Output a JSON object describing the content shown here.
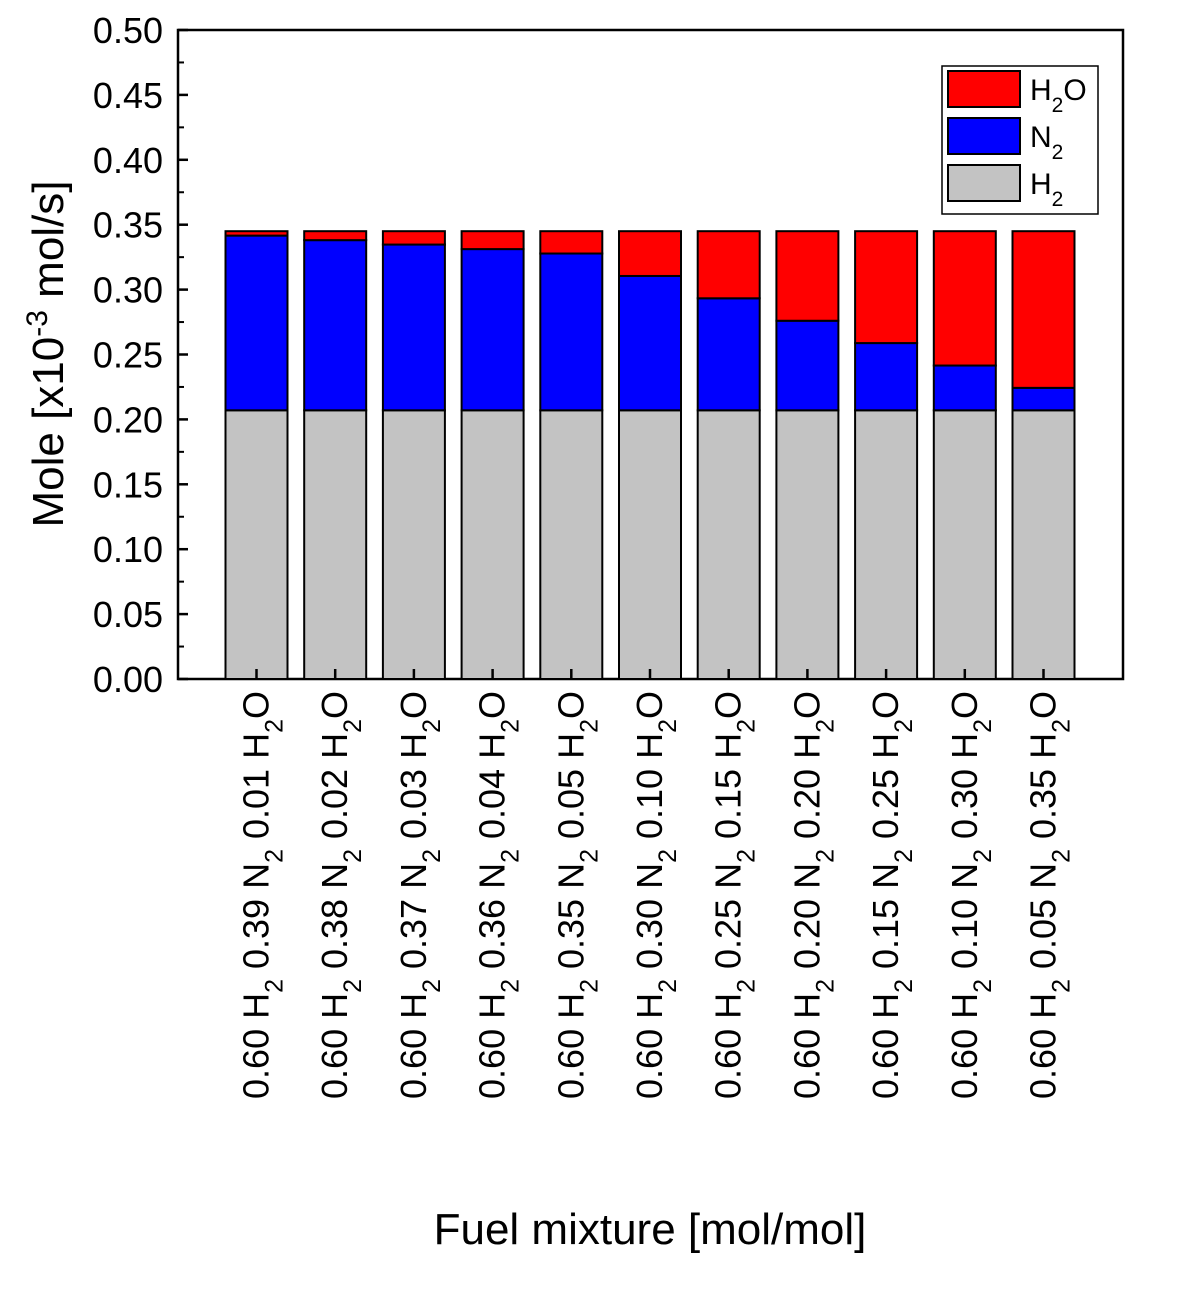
{
  "chart_data": {
    "type": "bar",
    "stacked": true,
    "xlabel": "Fuel mixture [mol/mol]",
    "ylabel": "Mole [x10^-3 mol/s]",
    "ylim": [
      0,
      0.5
    ],
    "yticks": [
      0.0,
      0.05,
      0.1,
      0.15,
      0.2,
      0.25,
      0.3,
      0.35,
      0.4,
      0.45,
      0.5
    ],
    "grid": false,
    "legend_position": "top-right",
    "categories": [
      "0.60 H2 0.39 N2 0.01 H2O",
      "0.60 H2 0.38 N2 0.02 H2O",
      "0.60 H2 0.37 N2 0.03 H2O",
      "0.60 H2 0.36 N2 0.04 H2O",
      "0.60 H2 0.35 N2 0.05 H2O",
      "0.60 H2 0.30 N2 0.10 H2O",
      "0.60 H2 0.25 N2 0.15 H2O",
      "0.60 H2 0.20 N2 0.20 H2O",
      "0.60 H2 0.15 N2 0.25 H2O",
      "0.60 H2 0.10 N2 0.30 H2O",
      "0.60 H2 0.05 N2 0.35 H2O"
    ],
    "series": [
      {
        "name": "H2",
        "color": "#c3c3c3",
        "values": [
          0.207,
          0.207,
          0.207,
          0.207,
          0.207,
          0.207,
          0.207,
          0.207,
          0.207,
          0.207,
          0.207
        ]
      },
      {
        "name": "N2",
        "color": "#0000ff",
        "values": [
          0.1346,
          0.1311,
          0.1277,
          0.1242,
          0.1208,
          0.1035,
          0.0863,
          0.069,
          0.0518,
          0.0345,
          0.0173
        ]
      },
      {
        "name": "H2O",
        "color": "#ff0000",
        "values": [
          0.0034,
          0.0069,
          0.0103,
          0.0138,
          0.0172,
          0.0345,
          0.0517,
          0.069,
          0.0862,
          0.1035,
          0.1207
        ]
      }
    ]
  }
}
